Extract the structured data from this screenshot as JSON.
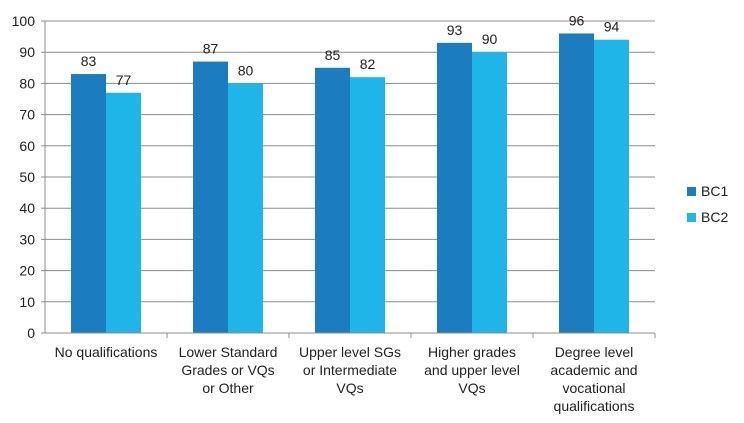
{
  "chart_data": {
    "type": "bar",
    "categories": [
      [
        "No qualifications"
      ],
      [
        "Lower Standard",
        "Grades or VQs",
        "or Other"
      ],
      [
        "Upper level SGs",
        "or Intermediate",
        "VQs"
      ],
      [
        "Higher grades",
        "and upper level",
        "VQs"
      ],
      [
        "Degree level",
        "academic and",
        "vocational",
        "qualifications"
      ]
    ],
    "series": [
      {
        "name": "BC1",
        "values": [
          83,
          87,
          85,
          93,
          96
        ],
        "color": "#1b7dc0"
      },
      {
        "name": "BC2",
        "values": [
          77,
          80,
          82,
          90,
          94
        ],
        "color": "#1fb5e8"
      }
    ],
    "ylim": [
      0,
      100
    ],
    "yticks": [
      0,
      10,
      20,
      30,
      40,
      50,
      60,
      70,
      80,
      90,
      100
    ],
    "grid": true,
    "legend_position": "right",
    "title": "",
    "xlabel": "",
    "ylabel": ""
  }
}
